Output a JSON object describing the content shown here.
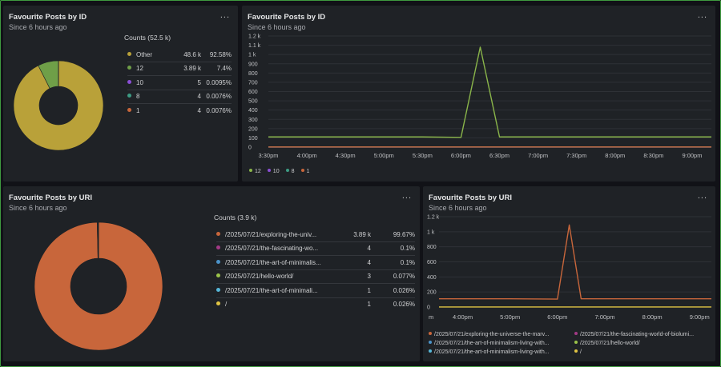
{
  "panels": {
    "id_pie": {
      "title": "Favourite Posts by ID",
      "subtitle": "Since 6 hours ago",
      "menu": "...",
      "counts_title": "Counts (52.5 k)",
      "rows": [
        {
          "label": "Other",
          "count": "48.6 k",
          "pct": "92.58%",
          "color": "#b9a139"
        },
        {
          "label": "12",
          "count": "3.89 k",
          "pct": "7.4%",
          "color": "#6f9f48"
        },
        {
          "label": "10",
          "count": "5",
          "pct": "0.0095%",
          "color": "#8b4fd6"
        },
        {
          "label": "8",
          "count": "4",
          "pct": "0.0076%",
          "color": "#3d9c84"
        },
        {
          "label": "1",
          "count": "4",
          "pct": "0.0076%",
          "color": "#c8663b"
        }
      ]
    },
    "id_line": {
      "title": "Favourite Posts by ID",
      "subtitle": "Since 6 hours ago",
      "menu": "...",
      "legend": [
        {
          "label": "12",
          "color": "#8ab54a"
        },
        {
          "label": "10",
          "color": "#8b4fd6"
        },
        {
          "label": "8",
          "color": "#3d9c84"
        },
        {
          "label": "1",
          "color": "#c8663b"
        }
      ]
    },
    "uri_pie": {
      "title": "Favourite Posts by URI",
      "subtitle": "Since 6 hours ago",
      "menu": "...",
      "counts_title": "Counts (3.9 k)",
      "rows": [
        {
          "label": "/2025/07/21/exploring-the-univ...",
          "count": "3.89 k",
          "pct": "99.67%",
          "color": "#c8663b"
        },
        {
          "label": "/2025/07/21/the-fascinating-wo...",
          "count": "4",
          "pct": "0.1%",
          "color": "#a23a86"
        },
        {
          "label": "/2025/07/21/the-art-of-minimalis...",
          "count": "4",
          "pct": "0.1%",
          "color": "#4b93c9"
        },
        {
          "label": "/2025/07/21/hello-world/",
          "count": "3",
          "pct": "0.077%",
          "color": "#9bc44a"
        },
        {
          "label": "/2025/07/21/the-art-of-minimali...",
          "count": "1",
          "pct": "0.026%",
          "color": "#56b7d8"
        },
        {
          "label": "/",
          "count": "1",
          "pct": "0.026%",
          "color": "#e0c443"
        }
      ]
    },
    "uri_line": {
      "title": "Favourite Posts by URI",
      "subtitle": "Since 6 hours ago",
      "menu": "...",
      "legend": [
        {
          "label": "/2025/07/21/exploring-the-universe-the-marv...",
          "color": "#c8663b"
        },
        {
          "label": "/2025/07/21/the-fascinating-world-of-biolumi...",
          "color": "#a23a86"
        },
        {
          "label": "/2025/07/21/the-art-of-minimalism-living-with...",
          "color": "#4b93c9"
        },
        {
          "label": "/2025/07/21/hello-world/",
          "color": "#9bc44a"
        },
        {
          "label": "/2025/07/21/the-art-of-minimalism-living-with...",
          "color": "#56b7d8"
        },
        {
          "label": "/",
          "color": "#e0c443"
        }
      ]
    }
  },
  "chart_data": [
    {
      "type": "pie",
      "title": "Favourite Posts by ID",
      "categories": [
        "Other",
        "12",
        "10",
        "8",
        "1"
      ],
      "values": [
        48600,
        3890,
        5,
        4,
        4
      ],
      "colors": [
        "#b9a139",
        "#6f9f48",
        "#8b4fd6",
        "#3d9c84",
        "#c8663b"
      ]
    },
    {
      "type": "line",
      "title": "Favourite Posts by ID",
      "yticks": [
        "1.2 k",
        "1.1 k",
        "1 k",
        "900",
        "800",
        "700",
        "600",
        "500",
        "400",
        "300",
        "200",
        "100",
        "0"
      ],
      "ylim": [
        0,
        1200
      ],
      "xticks": [
        "3:30pm",
        "4:00pm",
        "4:30pm",
        "5:00pm",
        "5:30pm",
        "6:00pm",
        "6:30pm",
        "7:00pm",
        "7:30pm",
        "8:00pm",
        "8:30pm",
        "9:00pm"
      ],
      "x": [
        "3:30pm",
        "4:00pm",
        "4:30pm",
        "5:00pm",
        "5:30pm",
        "6:00pm",
        "6:15pm",
        "6:30pm",
        "7:00pm",
        "7:30pm",
        "8:00pm",
        "8:30pm",
        "9:00pm",
        "9:15pm"
      ],
      "series": [
        {
          "name": "12",
          "color": "#8ab54a",
          "values": [
            110,
            110,
            110,
            110,
            110,
            105,
            1080,
            110,
            110,
            110,
            110,
            110,
            110,
            110
          ]
        },
        {
          "name": "10",
          "color": "#8b4fd6",
          "values": [
            1,
            1,
            1,
            1,
            1,
            1,
            1,
            1,
            1,
            1,
            1,
            1,
            1,
            1
          ]
        },
        {
          "name": "8",
          "color": "#3d9c84",
          "values": [
            1,
            1,
            1,
            1,
            1,
            1,
            1,
            1,
            1,
            1,
            1,
            1,
            1,
            1
          ]
        },
        {
          "name": "1",
          "color": "#c8663b",
          "values": [
            2,
            2,
            2,
            2,
            2,
            2,
            2,
            2,
            2,
            2,
            2,
            2,
            2,
            2
          ]
        }
      ]
    },
    {
      "type": "pie",
      "title": "Favourite Posts by URI",
      "categories": [
        "/2025/07/21/exploring-the-univ...",
        "/2025/07/21/the-fascinating-wo...",
        "/2025/07/21/the-art-of-minimalis...",
        "/2025/07/21/hello-world/",
        "/2025/07/21/the-art-of-minimali...",
        "/"
      ],
      "values": [
        3890,
        4,
        4,
        3,
        1,
        1
      ],
      "colors": [
        "#c8663b",
        "#a23a86",
        "#4b93c9",
        "#9bc44a",
        "#56b7d8",
        "#e0c443"
      ]
    },
    {
      "type": "line",
      "title": "Favourite Posts by URI",
      "yticks": [
        "1.2 k",
        "1 k",
        "800",
        "600",
        "400",
        "200",
        "0"
      ],
      "ylim": [
        0,
        1200
      ],
      "xticks": [
        "m",
        "4:00pm",
        "5:00pm",
        "6:00pm",
        "7:00pm",
        "8:00pm",
        "9:00pm"
      ],
      "x": [
        "3:30pm",
        "4:00pm",
        "5:00pm",
        "6:00pm",
        "6:15pm",
        "6:30pm",
        "7:00pm",
        "8:00pm",
        "9:00pm",
        "9:15pm"
      ],
      "series": [
        {
          "name": "/2025/07/21/exploring-the-universe-the-marv...",
          "color": "#c8663b",
          "values": [
            110,
            110,
            110,
            105,
            1090,
            110,
            110,
            110,
            110,
            110
          ]
        },
        {
          "name": "/",
          "color": "#e0c443",
          "values": [
            1,
            1,
            1,
            1,
            1,
            1,
            1,
            1,
            1,
            1
          ]
        }
      ]
    }
  ]
}
